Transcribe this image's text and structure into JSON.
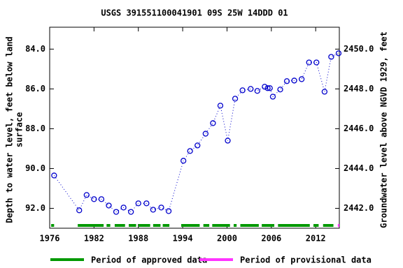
{
  "chart_data": {
    "type": "scatter",
    "title": "USGS 391551100041901 09S 25W 14DDD 01",
    "y_label_lines": [
      "Depth to water level, feet below land",
      "surface"
    ],
    "y2_label": "Groundwater level above NGVD 1929, feet",
    "xlim": [
      1976,
      2015.2
    ],
    "xticks": [
      1976,
      1982,
      1988,
      1994,
      2000,
      2006,
      2012
    ],
    "ylim": [
      82.9,
      93.0
    ],
    "inverted": true,
    "yticks": [
      {
        "value": 84,
        "label": "84.0"
      },
      {
        "value": 86,
        "label": "86.0"
      },
      {
        "value": 88,
        "label": "88.0"
      },
      {
        "value": 90,
        "label": "90.0"
      },
      {
        "value": 92,
        "label": "92.0"
      }
    ],
    "y2lim": [
      2451.1,
      2441.0
    ],
    "y2ticks": [
      {
        "value": 2450,
        "label": "2450.0"
      },
      {
        "value": 2448,
        "label": "2448.0"
      },
      {
        "value": 2446,
        "label": "2446.0"
      },
      {
        "value": 2444,
        "label": "2444.0"
      },
      {
        "value": 2442,
        "label": "2442.0"
      }
    ],
    "series": [
      {
        "name": "Depth to water level",
        "color": "#0000cc",
        "x": [
          1976.6,
          1980.0,
          1981.0,
          1982.0,
          1983.0,
          1984.0,
          1985.0,
          1986.0,
          1987.0,
          1988.0,
          1989.1,
          1990.0,
          1991.1,
          1992.1,
          1994.1,
          1995.0,
          1996.0,
          1997.1,
          1998.1,
          1999.1,
          2000.1,
          2001.1,
          2002.1,
          2003.2,
          2004.1,
          2005.1,
          2005.5,
          2005.8,
          2006.2,
          2007.2,
          2008.1,
          2009.1,
          2010.1,
          2011.1,
          2012.1,
          2013.2,
          2014.1,
          2015.1
        ],
        "values": [
          90.35,
          92.1,
          91.33,
          91.54,
          91.54,
          91.86,
          92.18,
          91.96,
          92.18,
          91.75,
          91.75,
          92.07,
          91.96,
          92.14,
          89.61,
          89.12,
          88.84,
          88.25,
          87.72,
          86.84,
          88.6,
          86.49,
          86.07,
          86.0,
          86.1,
          85.89,
          85.96,
          85.96,
          86.39,
          86.03,
          85.61,
          85.58,
          85.51,
          84.67,
          84.67,
          86.14,
          84.39,
          84.21
        ]
      }
    ],
    "periods": [
      {
        "name": "Period of approved data",
        "color": "#009900",
        "ranges": [
          [
            1976.2,
            1976.6
          ],
          [
            1979.8,
            1983.3
          ],
          [
            1983.7,
            1984.2
          ],
          [
            1984.8,
            1986.2
          ],
          [
            1986.7,
            1987.7
          ],
          [
            1988.0,
            1989.6
          ],
          [
            1990.0,
            1991.0
          ],
          [
            1991.3,
            1992.2
          ],
          [
            1993.8,
            1996.3
          ],
          [
            1996.8,
            1997.6
          ],
          [
            1998.0,
            2000.4
          ],
          [
            2000.9,
            2001.3
          ],
          [
            2001.8,
            2004.3
          ],
          [
            2004.7,
            2006.4
          ],
          [
            2006.9,
            2011.2
          ],
          [
            2011.7,
            2012.4
          ],
          [
            2013.0,
            2014.4
          ]
        ]
      },
      {
        "name": "Period of provisional data",
        "color": "#ff33ff",
        "ranges": [
          [
            2015.0,
            2015.2
          ]
        ]
      }
    ]
  }
}
